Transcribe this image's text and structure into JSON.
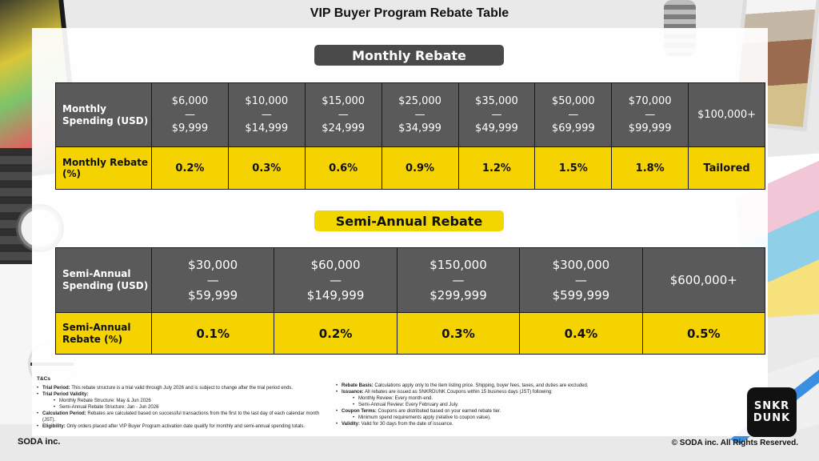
{
  "title": "VIP Buyer Program Rebate Table",
  "monthly": {
    "label": "Monthly Rebate",
    "spending_header": "Monthly Spending (USD)",
    "rebate_header": "Monthly Rebate (%)",
    "tiers": [
      {
        "low": "$6,000",
        "sep": "—",
        "high": "$9,999",
        "rebate": "0.2%"
      },
      {
        "low": "$10,000",
        "sep": "—",
        "high": "$14,999",
        "rebate": "0.3%"
      },
      {
        "low": "$15,000",
        "sep": "—",
        "high": "$24,999",
        "rebate": "0.6%"
      },
      {
        "low": "$25,000",
        "sep": "—",
        "high": "$34,999",
        "rebate": "0.9%"
      },
      {
        "low": "$35,000",
        "sep": "—",
        "high": "$49,999",
        "rebate": "1.2%"
      },
      {
        "low": "$50,000",
        "sep": "—",
        "high": "$69,999",
        "rebate": "1.5%"
      },
      {
        "low": "$70,000",
        "sep": "—",
        "high": "$99,999",
        "rebate": "1.8%"
      }
    ],
    "top_tier": {
      "range": "$100,000+",
      "rebate": "Tailored"
    }
  },
  "semi_annual": {
    "label": "Semi-Annual Rebate",
    "spending_header": "Semi-Annual Spending (USD)",
    "rebate_header": "Semi-Annual Rebate (%)",
    "tiers": [
      {
        "low": "$30,000",
        "sep": "—",
        "high": "$59,999",
        "rebate": "0.1%"
      },
      {
        "low": "$60,000",
        "sep": "—",
        "high": "$149,999",
        "rebate": "0.2%"
      },
      {
        "low": "$150,000",
        "sep": "—",
        "high": "$299,999",
        "rebate": "0.3%"
      },
      {
        "low": "$300,000",
        "sep": "—",
        "high": "$599,999",
        "rebate": "0.4%"
      }
    ],
    "top_tier": {
      "range": "$600,000+",
      "rebate": "0.5%"
    }
  },
  "tcs": {
    "heading": "T&Cs",
    "left": [
      {
        "label": "Trial Period:",
        "text": " This rebate structure is a trial valid through July 2026 and is subject to change after the trial period ends."
      },
      {
        "label": "Trial Period Validity:",
        "text": ""
      },
      {
        "sub": "Monthly Rebate Structure: May & Jun 2026"
      },
      {
        "sub": "Semi-Annual Rebate Structure: Jan - Jun 2026"
      },
      {
        "label": "Calculation Period:",
        "text": " Rebates are calculated based on successful transactions from the first to the last day of each calendar month (JST)."
      },
      {
        "label": "Eligibility:",
        "text": " Only orders placed after VIP Buyer Program activation date qualify for monthly and semi-annual spending totals."
      }
    ],
    "right": [
      {
        "label": "Rebate Basis:",
        "text": " Calculations apply only to the item listing price. Shipping, buyer fees, taxes, and duties are excluded."
      },
      {
        "label": "Issuance:",
        "text": " All rebates are issued as SNKRDUNK Coupons within 15 business days (JST) following:"
      },
      {
        "sub": "Monthly Review: Every month-end."
      },
      {
        "sub": "Semi-Annual Review: Every February and July."
      },
      {
        "label": "Coupon Terms:",
        "text": " Coupons are distributed based on your earned rebate tier."
      },
      {
        "sub": "Minimum spend requirements apply (relative to coupon value)."
      },
      {
        "label": "Validity:",
        "text": " Valid for 30 days from the date of issuance."
      }
    ]
  },
  "brand": {
    "line1": "SNKR",
    "line2": "DUNK"
  },
  "footer": {
    "company": "SODA inc.",
    "copyright": "© SODA inc. All Rights Reserved."
  },
  "colors": {
    "dark_cell": "#5a5a5a",
    "yellow_cell": "#f4d300"
  }
}
